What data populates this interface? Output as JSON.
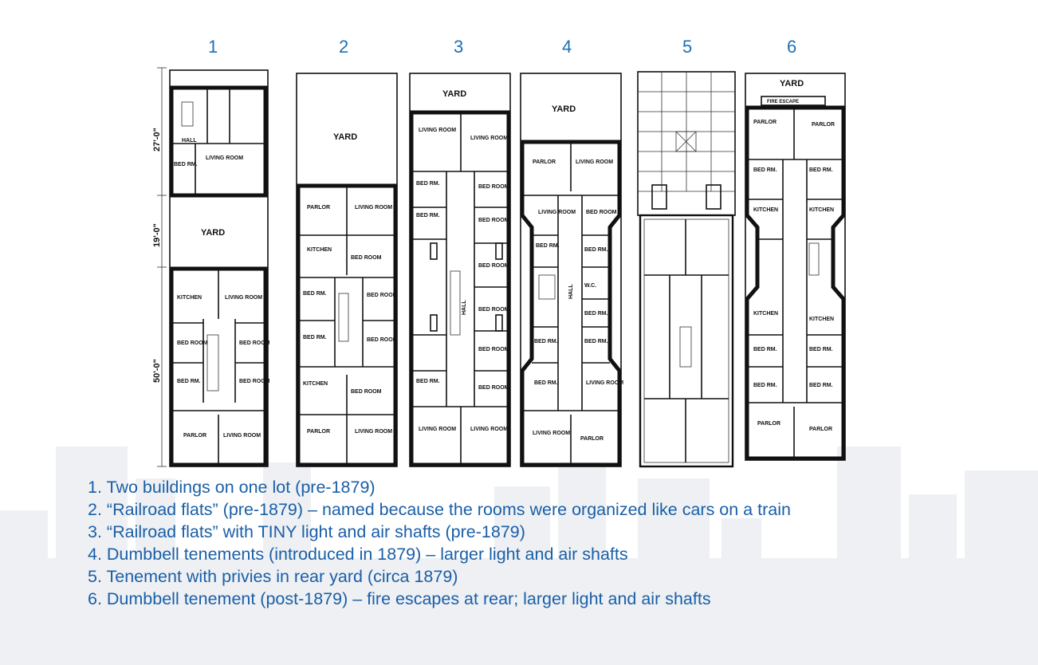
{
  "plan_numbers": [
    "1",
    "2",
    "3",
    "4",
    "5",
    "6"
  ],
  "dimension_labels": [
    "27'-0\"",
    "19'-0\"",
    "50'-0\""
  ],
  "room_labels": {
    "yard": "YARD",
    "fire_escape": "FIRE ESCAPE",
    "hall": "HALL",
    "living_room": "LIVING ROOM",
    "bed_room": "BED ROOM",
    "bed_rm": "BED RM.",
    "kitchen": "KITCHEN",
    "parlor": "PARLOR",
    "wc": "W.C."
  },
  "captions": [
    "1. Two buildings on one lot (pre-1879)",
    "2. “Railroad flats” (pre-1879) – named because the rooms were organized like cars on a train",
    "3. “Railroad flats” with TINY light and air shafts (pre-1879)",
    "4. Dumbbell tenements (introduced in 1879) – larger light and air shafts",
    "5. Tenement with privies in rear yard (circa 1879)",
    "6. Dumbbell tenement (post-1879) – fire escapes at rear; larger light and air shafts"
  ],
  "colors": {
    "caption": "#1a5fa8",
    "number": "#1f6fb4",
    "skyline": "#eef0f3",
    "ink": "#111111"
  }
}
